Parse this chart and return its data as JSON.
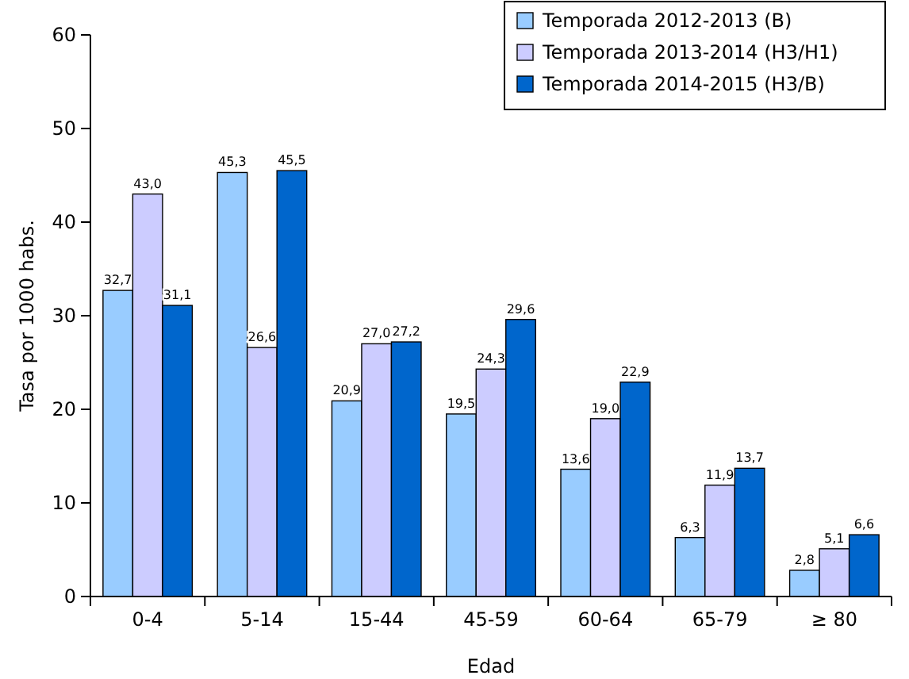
{
  "chart_data": {
    "type": "bar",
    "xlabel": "Edad",
    "ylabel": "Tasa por 1000 habs.",
    "categories": [
      "0-4",
      "5-14",
      "15-44",
      "45-59",
      "60-64",
      "65-79",
      "≥ 80"
    ],
    "series": [
      {
        "name": "Temporada 2012-2013 (B)",
        "color": "#99ccff",
        "values": [
          32.7,
          45.3,
          20.9,
          19.5,
          13.6,
          6.3,
          2.8
        ],
        "value_labels": [
          "32,7",
          "45,3",
          "20,9",
          "19,5",
          "13,6",
          "6,3",
          "2,8"
        ]
      },
      {
        "name": "Temporada 2013-2014 (H3/H1)",
        "color": "#ccccff",
        "values": [
          43.0,
          26.6,
          27.0,
          24.3,
          19.0,
          11.9,
          5.1
        ],
        "value_labels": [
          "43,0",
          "26,6",
          "27,0",
          "24,3",
          "19,0",
          "11,9",
          "5,1"
        ]
      },
      {
        "name": "Temporada 2014-2015 (H3/B)",
        "color": "#0066cc",
        "values": [
          31.1,
          45.5,
          27.2,
          29.6,
          22.9,
          13.7,
          6.6
        ],
        "value_labels": [
          "31,1",
          "45,5",
          "27,2",
          "29,6",
          "22,9",
          "13,7",
          "6,6"
        ]
      }
    ],
    "ylim": [
      0,
      60
    ],
    "yticks": [
      0,
      10,
      20,
      30,
      40,
      50,
      60
    ],
    "grid": false,
    "legend": "top right"
  }
}
